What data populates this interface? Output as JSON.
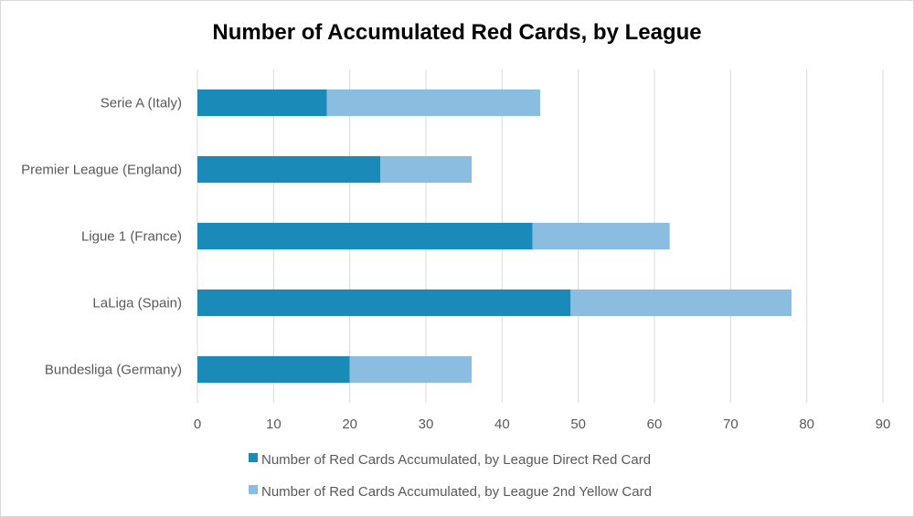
{
  "chart_data": {
    "type": "bar",
    "orientation": "horizontal",
    "stacked": true,
    "title": "Number of Accumulated Red Cards, by League",
    "categories": [
      "Serie A (Italy)",
      "Premier League (England)",
      "Ligue 1 (France)",
      "LaLiga (Spain)",
      "Bundesliga (Germany)"
    ],
    "series": [
      {
        "name": "Number of Red Cards Accumulated, by League Direct Red Card",
        "color": "#1a8ab8",
        "values": [
          17,
          24,
          44,
          49,
          20
        ]
      },
      {
        "name": "Number of Red Cards Accumulated, by League 2nd Yellow Card",
        "color": "#8bbde0",
        "values": [
          28,
          12,
          18,
          29,
          16
        ]
      }
    ],
    "xlim": [
      0,
      90
    ],
    "xticks": [
      "0",
      "10",
      "20",
      "30",
      "40",
      "50",
      "60",
      "70",
      "80",
      "90"
    ],
    "grid": true,
    "legend": "bottom"
  }
}
